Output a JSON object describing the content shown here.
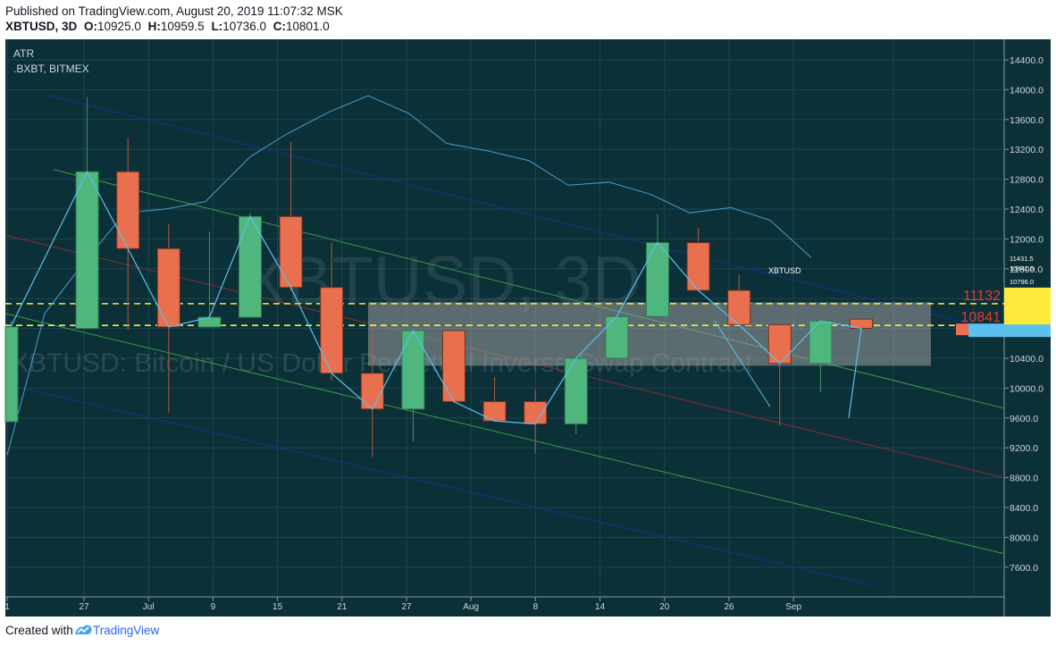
{
  "header": {
    "published": "Published on TradingView.com, August 20, 2019 11:07:32 MSK",
    "symbol": "XBTUSD, 3D",
    "o_label": "O:",
    "o_value": "10925.0",
    "h_label": "H:",
    "h_value": "10959.5",
    "l_label": "L:",
    "l_value": "10736.0",
    "c_label": "C:",
    "c_value": "10801.0"
  },
  "indicator": {
    "name": "ATR",
    "source": ".BXBT, BITMEX"
  },
  "watermark": {
    "big": "XBTUSD, 3D",
    "small": "XBTUSD: Bitcoin / US Dollar Perpetual Inverse Swap Contract"
  },
  "compare_label": "XBTUSD",
  "footer": {
    "created": "Created with",
    "brand": "TradingView"
  },
  "colors": {
    "background": "#0b3038",
    "up": "#4fb67e",
    "down": "#e9704f",
    "line": "#5bc0eb",
    "level_line": "#ffeb3b",
    "zone": "#9e9e9e",
    "channel_blue": "#1b2f8f",
    "channel_green": "#3e9a48",
    "channel_red": "#8b2c2c"
  },
  "chart_data": {
    "type": "candlestick",
    "xlabels": [
      "1",
      "27",
      "Jul",
      "9",
      "15",
      "21",
      "27",
      "Aug",
      "8",
      "14",
      "20",
      "26",
      "Sep"
    ],
    "ylabels": [
      "14400.0",
      "14000.0",
      "13600.0",
      "13200.0",
      "12800.0",
      "12400.0",
      "12000.0",
      "11600.0",
      "11200.0",
      "10800.0",
      "10400.0",
      "10000.0",
      "9600.0",
      "9200.0",
      "8800.0",
      "8400.0",
      "8000.0",
      "7600.0"
    ],
    "ylim": [
      7250,
      14800
    ],
    "price_labels": [
      {
        "text": "11132",
        "value": 11132,
        "color": "#ffeb3b"
      },
      {
        "text": "10841",
        "value": 10841,
        "color": "#e9704f"
      }
    ],
    "right_axis_small": [
      "11431.5",
      "10841.5",
      "10796.0"
    ],
    "levels": [
      11132,
      10841
    ],
    "zone": {
      "from": 10300,
      "to": 11150
    },
    "candles": [
      {
        "o": 9550,
        "h": 10900,
        "l": 9550,
        "c": 10820
      },
      {
        "o": 10800,
        "h": 13900,
        "l": 10800,
        "c": 12900
      },
      {
        "o": 12900,
        "h": 13350,
        "l": 10780,
        "c": 11870
      },
      {
        "o": 11870,
        "h": 12200,
        "l": 9670,
        "c": 10820
      },
      {
        "o": 10820,
        "h": 12100,
        "l": 10820,
        "c": 10950
      },
      {
        "o": 10950,
        "h": 12350,
        "l": 10950,
        "c": 12300
      },
      {
        "o": 12300,
        "h": 13300,
        "l": 11300,
        "c": 11350
      },
      {
        "o": 11350,
        "h": 11950,
        "l": 10100,
        "c": 10200
      },
      {
        "o": 10200,
        "h": 10800,
        "l": 9080,
        "c": 9720
      },
      {
        "o": 9720,
        "h": 10800,
        "l": 9280,
        "c": 10770
      },
      {
        "o": 10770,
        "h": 10800,
        "l": 9800,
        "c": 9820
      },
      {
        "o": 9820,
        "h": 10150,
        "l": 9560,
        "c": 9560
      },
      {
        "o": 9820,
        "h": 9980,
        "l": 9120,
        "c": 9520
      },
      {
        "o": 9520,
        "h": 10400,
        "l": 9380,
        "c": 10400
      },
      {
        "o": 10400,
        "h": 10960,
        "l": 10400,
        "c": 10960
      },
      {
        "o": 10960,
        "h": 12330,
        "l": 10960,
        "c": 11950
      },
      {
        "o": 11950,
        "h": 12150,
        "l": 11310,
        "c": 11310
      },
      {
        "o": 11310,
        "h": 11520,
        "l": 10850,
        "c": 10850
      },
      {
        "o": 10850,
        "h": 10890,
        "l": 9500,
        "c": 10330
      },
      {
        "o": 10330,
        "h": 10900,
        "l": 9950,
        "c": 10900
      },
      {
        "o": 10925,
        "h": 10959.5,
        "l": 10736,
        "c": 10801
      }
    ]
  }
}
